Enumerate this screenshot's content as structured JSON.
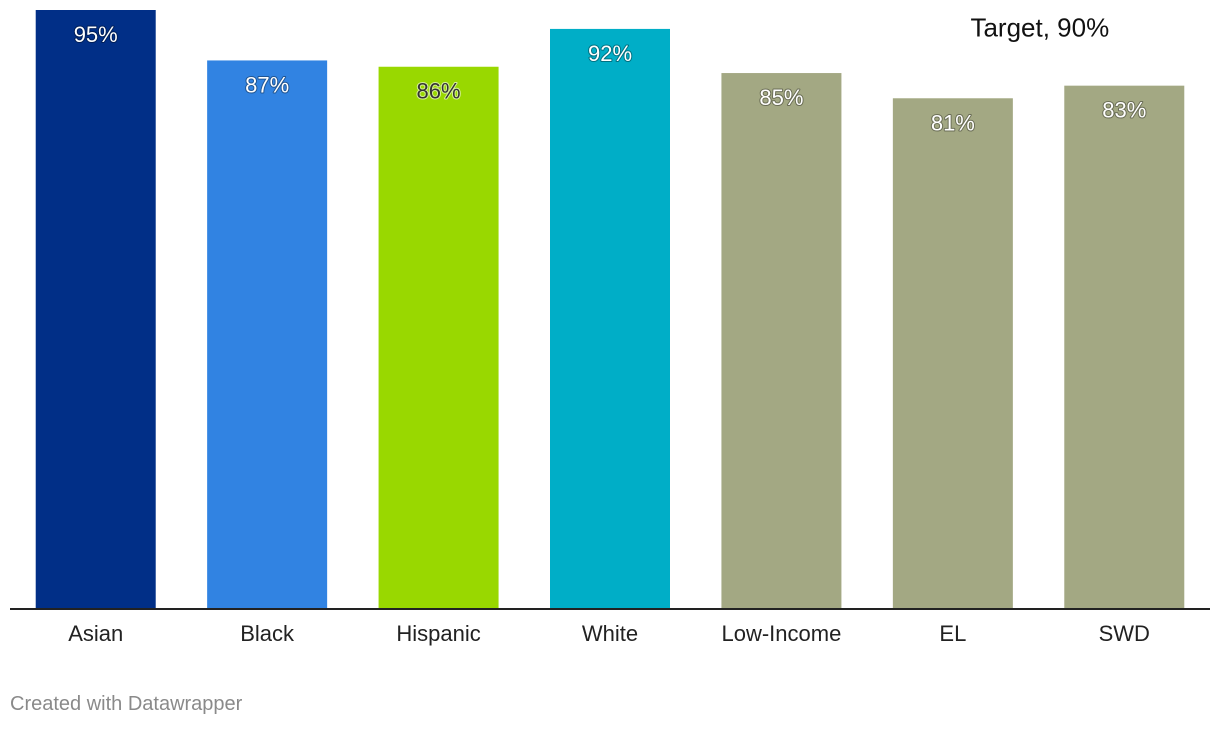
{
  "chart_data": {
    "type": "bar",
    "categories": [
      "Asian",
      "Black",
      "Hispanic",
      "White",
      "Low-Income",
      "EL",
      "SWD"
    ],
    "values": [
      95,
      87,
      86,
      92,
      85,
      81,
      83
    ],
    "value_labels": [
      "95%",
      "87%",
      "86%",
      "92%",
      "85%",
      "81%",
      "83%"
    ],
    "colors": [
      "#012f87",
      "#3183e2",
      "#99d800",
      "#00aec7",
      "#a3a883",
      "#a3a883",
      "#a3a883"
    ],
    "label_colors": [
      "#ffffff",
      "#ffffff",
      "#333333",
      "#ffffff",
      "#ffffff",
      "#ffffff",
      "#ffffff"
    ],
    "ylim": [
      0,
      95
    ],
    "grid": false,
    "annotations": [
      {
        "text": "Target, 90%",
        "x": "EL",
        "y": 90
      }
    ]
  },
  "footer": {
    "credit": "Created with Datawrapper"
  }
}
